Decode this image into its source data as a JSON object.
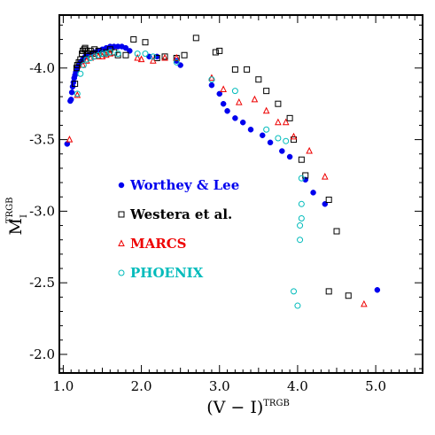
{
  "chart_data": {
    "type": "scatter",
    "xlabel": "(V − I)",
    "xlabel_sup": "TRGB",
    "ylabel": "M",
    "ylabel_sub": "I",
    "ylabel_sup": "TRGB",
    "xlim": [
      0.95,
      5.6
    ],
    "ylim": [
      -1.87,
      -4.37
    ],
    "y_inverted": true,
    "x_ticks": [
      1.0,
      2.0,
      3.0,
      4.0,
      5.0
    ],
    "x_tick_labels": [
      "1.0",
      "2.0",
      "3.0",
      "4.0",
      "5.0"
    ],
    "y_ticks": [
      -2.0,
      -2.5,
      -3.0,
      -3.5,
      -4.0
    ],
    "y_tick_labels": [
      "-2.0",
      "-2.5",
      "-3.0",
      "-3.5",
      "-4.0"
    ],
    "grid": false,
    "legend_position": "left-middle",
    "series": [
      {
        "name": "Worthey & Lee",
        "marker": "filled-circle",
        "color": "#0000ee",
        "points": [
          [
            1.05,
            -3.47
          ],
          [
            1.09,
            -3.77
          ],
          [
            1.1,
            -3.78
          ],
          [
            1.11,
            -3.83
          ],
          [
            1.12,
            -3.87
          ],
          [
            1.13,
            -3.9
          ],
          [
            1.14,
            -3.93
          ],
          [
            1.15,
            -3.95
          ],
          [
            1.16,
            -3.97
          ],
          [
            1.17,
            -3.98
          ],
          [
            1.18,
            -4.0
          ],
          [
            1.2,
            -4.02
          ],
          [
            1.22,
            -4.04
          ],
          [
            1.25,
            -4.06
          ],
          [
            1.28,
            -4.08
          ],
          [
            1.32,
            -4.09
          ],
          [
            1.36,
            -4.1
          ],
          [
            1.4,
            -4.11
          ],
          [
            1.45,
            -4.12
          ],
          [
            1.5,
            -4.13
          ],
          [
            1.55,
            -4.14
          ],
          [
            1.6,
            -4.15
          ],
          [
            1.65,
            -4.15
          ],
          [
            1.7,
            -4.15
          ],
          [
            1.75,
            -4.15
          ],
          [
            1.8,
            -4.14
          ],
          [
            1.85,
            -4.12
          ],
          [
            2.1,
            -4.08
          ],
          [
            2.2,
            -4.08
          ],
          [
            2.45,
            -4.05
          ],
          [
            2.5,
            -4.02
          ],
          [
            2.9,
            -3.88
          ],
          [
            3.0,
            -3.82
          ],
          [
            3.05,
            -3.75
          ],
          [
            3.1,
            -3.7
          ],
          [
            3.2,
            -3.65
          ],
          [
            3.3,
            -3.62
          ],
          [
            3.4,
            -3.57
          ],
          [
            3.55,
            -3.53
          ],
          [
            3.65,
            -3.48
          ],
          [
            3.8,
            -3.42
          ],
          [
            3.9,
            -3.38
          ],
          [
            4.1,
            -3.22
          ],
          [
            4.2,
            -3.13
          ],
          [
            4.35,
            -3.05
          ],
          [
            5.02,
            -2.45
          ]
        ]
      },
      {
        "name": "Westera et al.",
        "marker": "open-square",
        "color": "#000000",
        "points": [
          [
            1.15,
            -3.89
          ],
          [
            1.17,
            -4.0
          ],
          [
            1.18,
            -4.02
          ],
          [
            1.2,
            -4.04
          ],
          [
            1.22,
            -4.06
          ],
          [
            1.24,
            -4.1
          ],
          [
            1.25,
            -4.12
          ],
          [
            1.27,
            -4.13
          ],
          [
            1.28,
            -4.14
          ],
          [
            1.3,
            -4.12
          ],
          [
            1.32,
            -4.1
          ],
          [
            1.35,
            -4.12
          ],
          [
            1.38,
            -4.1
          ],
          [
            1.4,
            -4.13
          ],
          [
            1.45,
            -4.12
          ],
          [
            1.5,
            -4.1
          ],
          [
            1.55,
            -4.11
          ],
          [
            1.6,
            -4.13
          ],
          [
            1.65,
            -4.11
          ],
          [
            1.7,
            -4.09
          ],
          [
            1.8,
            -4.09
          ],
          [
            1.9,
            -4.2
          ],
          [
            2.05,
            -4.18
          ],
          [
            2.2,
            -4.07
          ],
          [
            2.3,
            -4.08
          ],
          [
            2.45,
            -4.07
          ],
          [
            2.55,
            -4.09
          ],
          [
            2.7,
            -4.21
          ],
          [
            2.95,
            -4.11
          ],
          [
            3.0,
            -4.12
          ],
          [
            3.2,
            -3.99
          ],
          [
            3.35,
            -3.99
          ],
          [
            3.5,
            -3.92
          ],
          [
            3.6,
            -3.84
          ],
          [
            3.75,
            -3.75
          ],
          [
            3.9,
            -3.65
          ],
          [
            3.95,
            -3.5
          ],
          [
            4.05,
            -3.36
          ],
          [
            4.1,
            -3.25
          ],
          [
            4.4,
            -3.08
          ],
          [
            4.5,
            -2.86
          ],
          [
            4.4,
            -2.44
          ],
          [
            4.65,
            -2.41
          ]
        ]
      },
      {
        "name": "MARCS",
        "marker": "open-triangle",
        "color": "#ee0000",
        "points": [
          [
            1.08,
            -3.5
          ],
          [
            1.18,
            -3.81
          ],
          [
            1.25,
            -4.02
          ],
          [
            1.3,
            -4.05
          ],
          [
            1.35,
            -4.07
          ],
          [
            1.4,
            -4.08
          ],
          [
            1.45,
            -4.08
          ],
          [
            1.5,
            -4.08
          ],
          [
            1.55,
            -4.09
          ],
          [
            1.6,
            -4.1
          ],
          [
            1.95,
            -4.07
          ],
          [
            2.0,
            -4.06
          ],
          [
            2.15,
            -4.05
          ],
          [
            2.3,
            -4.07
          ],
          [
            2.45,
            -4.07
          ],
          [
            2.9,
            -3.93
          ],
          [
            3.05,
            -3.85
          ],
          [
            3.25,
            -3.76
          ],
          [
            3.45,
            -3.78
          ],
          [
            3.6,
            -3.7
          ],
          [
            3.75,
            -3.62
          ],
          [
            3.85,
            -3.62
          ],
          [
            3.95,
            -3.52
          ],
          [
            4.15,
            -3.42
          ],
          [
            4.35,
            -3.24
          ],
          [
            4.85,
            -2.35
          ]
        ]
      },
      {
        "name": "PHOENIX",
        "marker": "open-circle",
        "color": "#00bbbb",
        "points": [
          [
            1.18,
            -3.82
          ],
          [
            1.22,
            -3.96
          ],
          [
            1.26,
            -4.02
          ],
          [
            1.3,
            -4.06
          ],
          [
            1.35,
            -4.07
          ],
          [
            1.4,
            -4.08
          ],
          [
            1.45,
            -4.09
          ],
          [
            1.5,
            -4.1
          ],
          [
            1.55,
            -4.1
          ],
          [
            1.6,
            -4.11
          ],
          [
            1.7,
            -4.1
          ],
          [
            1.95,
            -4.1
          ],
          [
            2.05,
            -4.1
          ],
          [
            2.15,
            -4.08
          ],
          [
            2.45,
            -4.04
          ],
          [
            2.9,
            -3.92
          ],
          [
            3.2,
            -3.84
          ],
          [
            3.6,
            -3.57
          ],
          [
            3.75,
            -3.51
          ],
          [
            3.85,
            -3.49
          ],
          [
            4.05,
            -3.23
          ],
          [
            4.05,
            -3.05
          ],
          [
            4.05,
            -2.95
          ],
          [
            4.03,
            -2.9
          ],
          [
            4.03,
            -2.8
          ],
          [
            3.95,
            -2.44
          ],
          [
            4.0,
            -2.34
          ]
        ]
      }
    ]
  }
}
